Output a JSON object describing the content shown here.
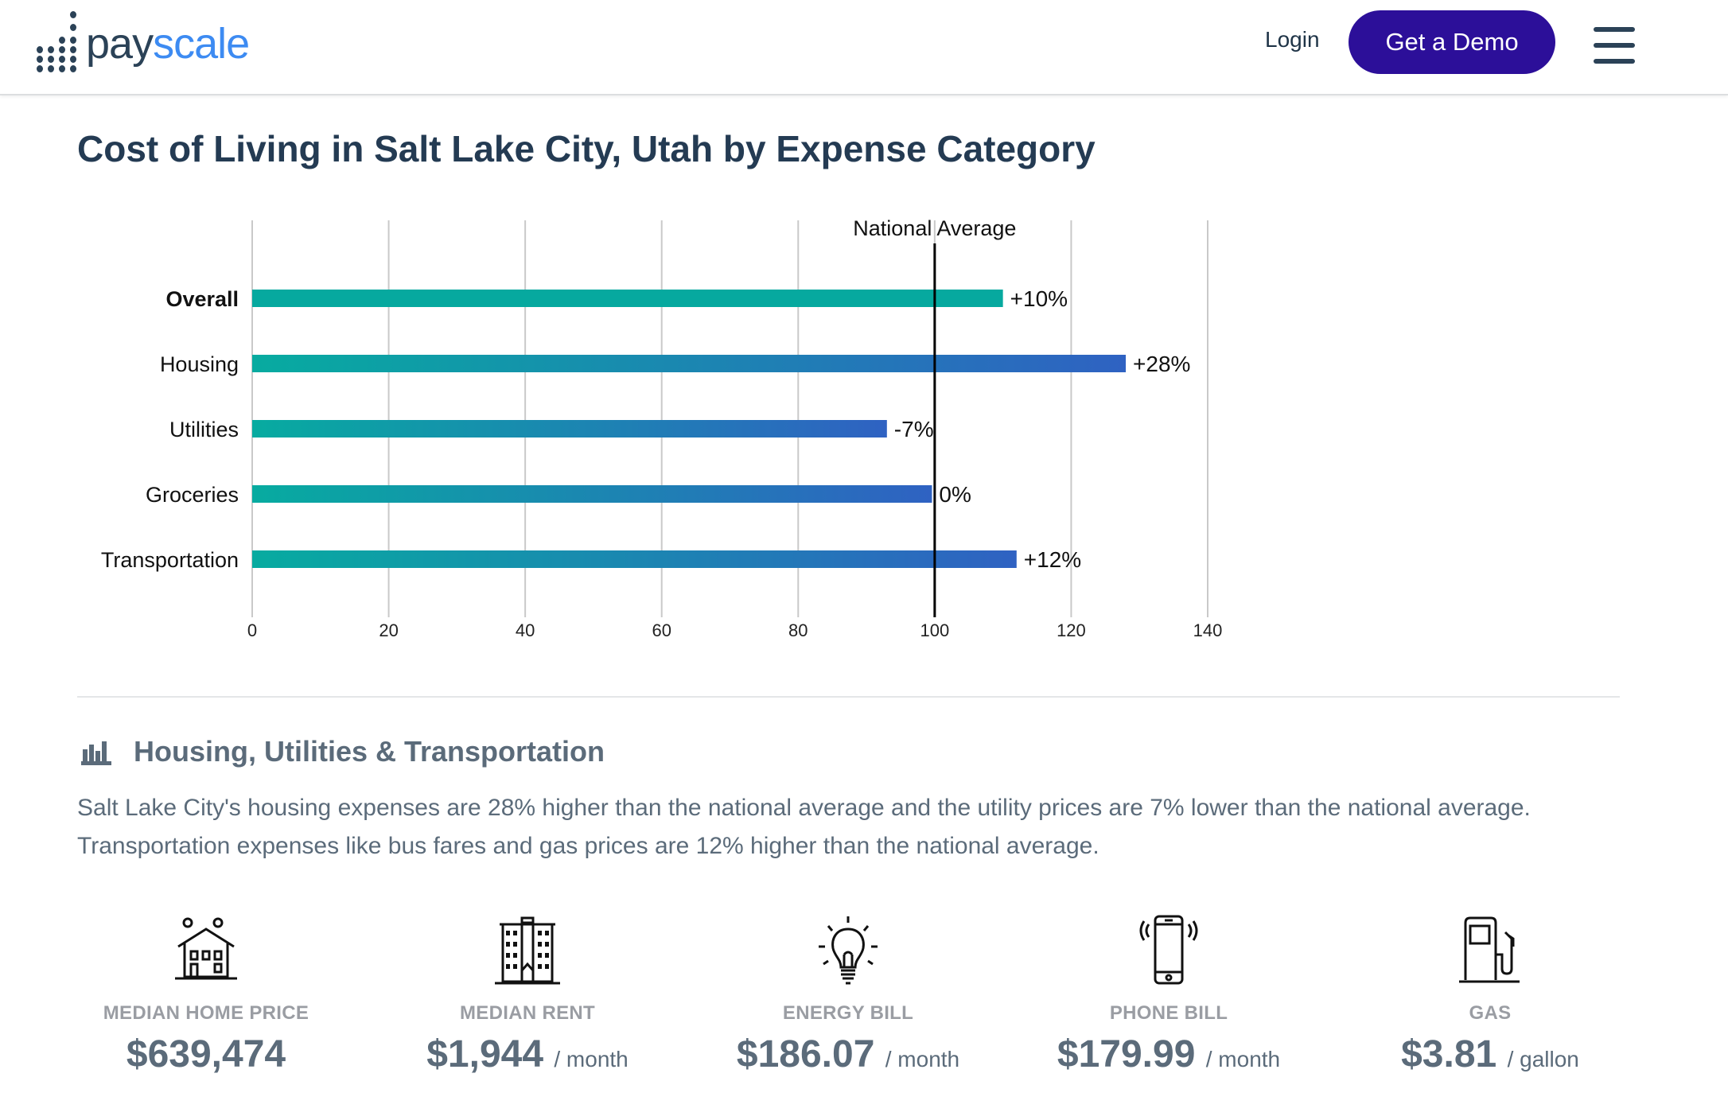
{
  "header": {
    "logo": "payscale",
    "logo_part1": "pay",
    "logo_part2": "scale",
    "login": "Login",
    "demo": "Get a Demo",
    "menu_icon": "hamburger-icon"
  },
  "page_title": "Cost of Living in Salt Lake City, Utah by Expense Category",
  "chart_data": {
    "type": "bar",
    "orientation": "horizontal",
    "categories": [
      "Overall",
      "Housing",
      "Utilities",
      "Groceries",
      "Transportation"
    ],
    "values": [
      110,
      128,
      93,
      99.6,
      112
    ],
    "labels": [
      "+10%",
      "+28%",
      "-7%",
      "0%",
      "+12%"
    ],
    "reference_line": {
      "value": 100,
      "label": "National Average"
    },
    "xlim": [
      0,
      140
    ],
    "xticks": [
      0,
      20,
      40,
      60,
      80,
      100,
      120,
      140
    ],
    "grid": true,
    "colors": {
      "start": "#07aba0",
      "end": "#2f62c2",
      "overall": "#06a99f"
    }
  },
  "section": {
    "title": "Housing, Utilities & Transportation",
    "icon": "bar-chart-icon",
    "lines": [
      "Salt Lake City's housing expenses are 28% higher than the national average and the utility prices are 7% lower than the national average.",
      "Transportation expenses like bus fares and gas prices are 12% higher than the national average."
    ]
  },
  "stats": [
    {
      "icon": "house-icon",
      "label": "MEDIAN HOME PRICE",
      "value": "$639,474",
      "unit": ""
    },
    {
      "icon": "apartment-building-icon",
      "label": "MEDIAN RENT",
      "value": "$1,944",
      "unit": "/ month"
    },
    {
      "icon": "light-bulb-icon",
      "label": "ENERGY BILL",
      "value": "$186.07",
      "unit": "/ month"
    },
    {
      "icon": "phone-icon",
      "label": "PHONE BILL",
      "value": "$179.99",
      "unit": "/ month"
    },
    {
      "icon": "gas-pump-icon",
      "label": "GAS",
      "value": "$3.81",
      "unit": "/ gallon"
    }
  ]
}
